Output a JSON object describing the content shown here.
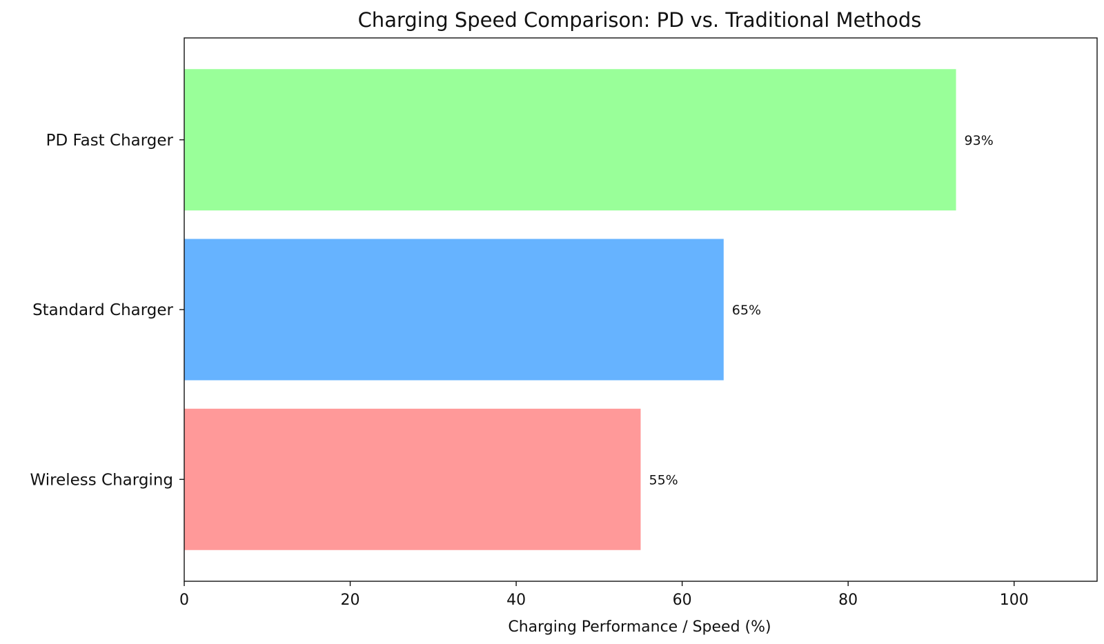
{
  "chart_data": {
    "type": "bar",
    "orientation": "horizontal",
    "title": "Charging Speed Comparison: PD vs. Traditional Methods",
    "xlabel": "Charging Performance / Speed (%)",
    "ylabel": "",
    "categories": [
      "PD Fast Charger",
      "Standard Charger",
      "Wireless Charging"
    ],
    "values": [
      93,
      65,
      55
    ],
    "data_labels": [
      "93%",
      "65%",
      "55%"
    ],
    "colors": [
      "#99ff99",
      "#66b3ff",
      "#ff9999"
    ],
    "xlim": [
      0,
      110
    ],
    "xticks": [
      0,
      20,
      40,
      60,
      80,
      100
    ],
    "grid": false,
    "legend": "none"
  }
}
